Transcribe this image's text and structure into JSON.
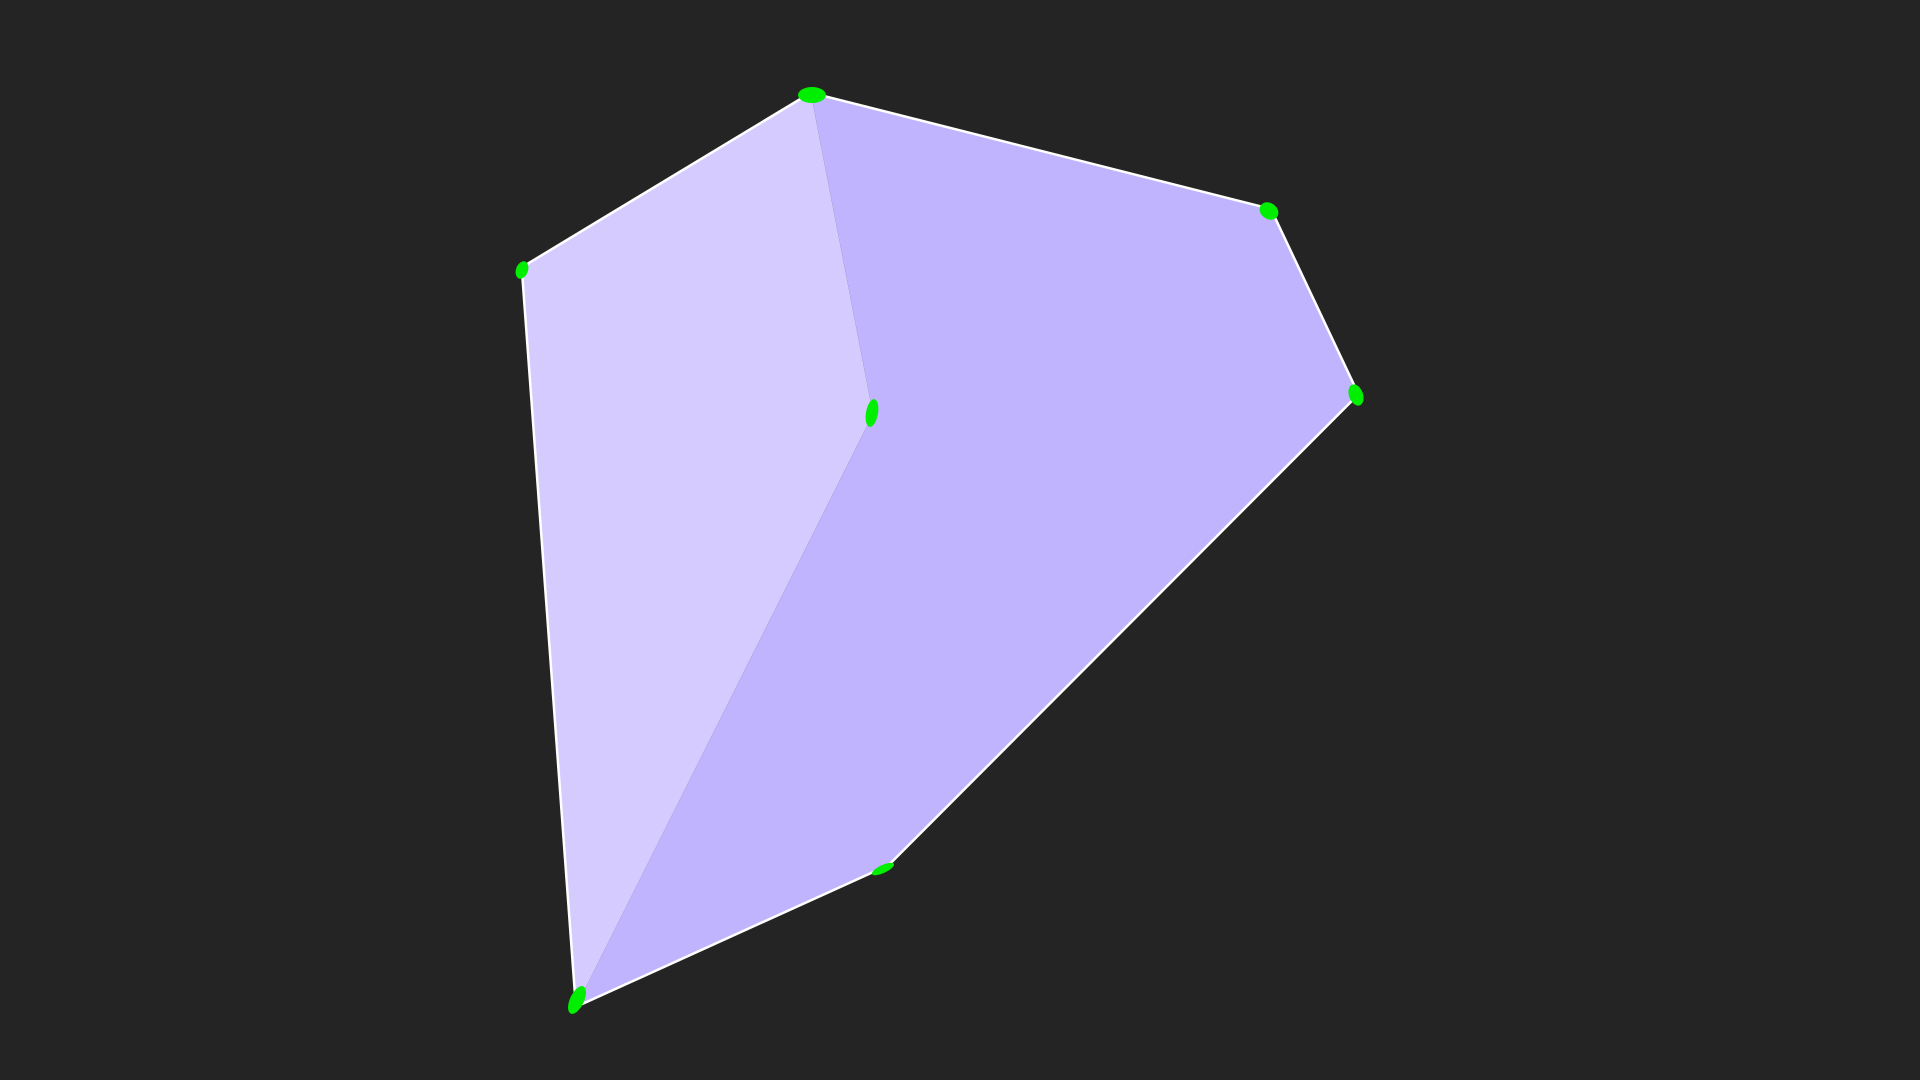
{
  "scene": {
    "background_color": "#242424",
    "face_colors": {
      "light_face": "#d6cbff",
      "main_face": "#bfb4fd"
    },
    "edge_color": "#ffffff",
    "vertex_marker_color": "#00ee00",
    "vertex_count": 7,
    "face_count": 2
  }
}
